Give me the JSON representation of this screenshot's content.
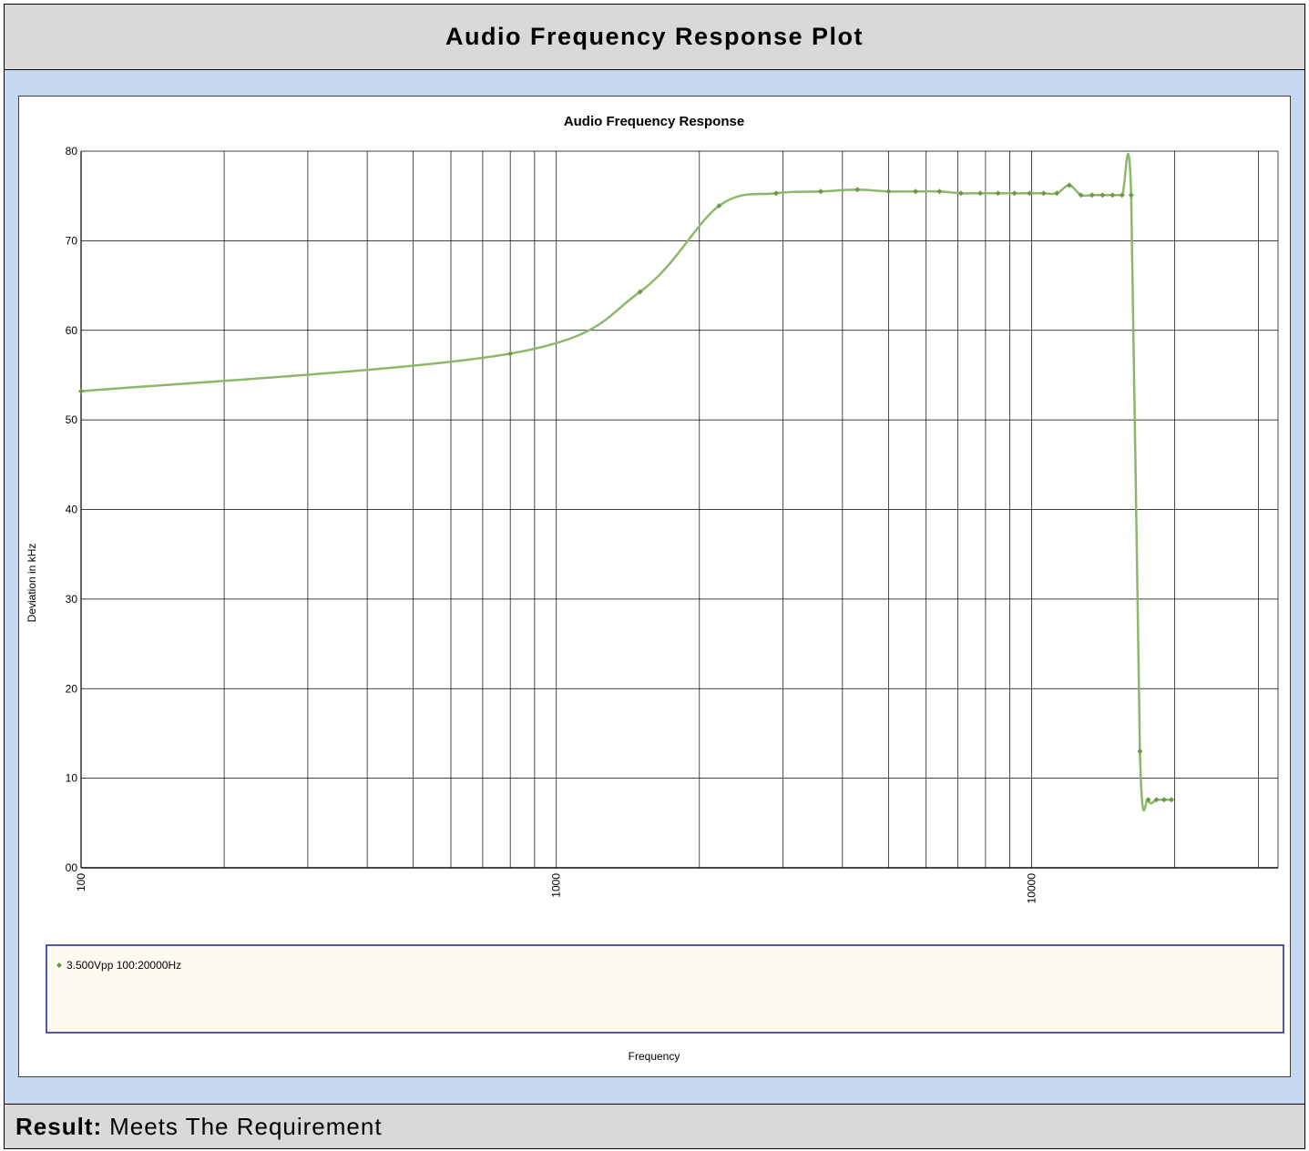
{
  "header": {
    "title": "Audio Frequency Response Plot"
  },
  "footer": {
    "result_label": "Result:",
    "result_value": "Meets The Requirement"
  },
  "colors": {
    "series": "#8db86a",
    "marker": "#6a9a48",
    "legend_bg": "#fdfaf2",
    "legend_border": "#1f1f8f"
  },
  "chart_data": {
    "type": "line",
    "title": "Audio Frequency Response",
    "xlabel": "Frequency",
    "ylabel": "Deviation in kHz",
    "x_scale": "log",
    "xlim": [
      100,
      33000
    ],
    "ylim": [
      0,
      80
    ],
    "x_ticks": [
      "100",
      "1000",
      "10000"
    ],
    "y_ticks": [
      "00",
      "10",
      "20",
      "30",
      "40",
      "50",
      "60",
      "70",
      "80"
    ],
    "grid": true,
    "legend_position": "bottom",
    "series": [
      {
        "name": "3.500Vpp 100:20000Hz",
        "x": [
          100,
          800,
          1500,
          2200,
          2900,
          3600,
          4300,
          5000,
          5700,
          6400,
          7100,
          7800,
          8500,
          9200,
          9900,
          10600,
          11300,
          12000,
          12700,
          13400,
          14100,
          14800,
          15500,
          16200,
          16900,
          17600,
          18300,
          19000,
          19700
        ],
        "y": [
          53.2,
          57.4,
          64.3,
          73.9,
          75.3,
          75.5,
          75.7,
          75.5,
          75.5,
          75.5,
          75.3,
          75.3,
          75.3,
          75.3,
          75.3,
          75.3,
          75.3,
          76.2,
          75.1,
          75.1,
          75.1,
          75.1,
          75.1,
          75.1,
          13.0,
          7.6,
          7.6,
          7.6,
          7.6
        ]
      }
    ]
  }
}
